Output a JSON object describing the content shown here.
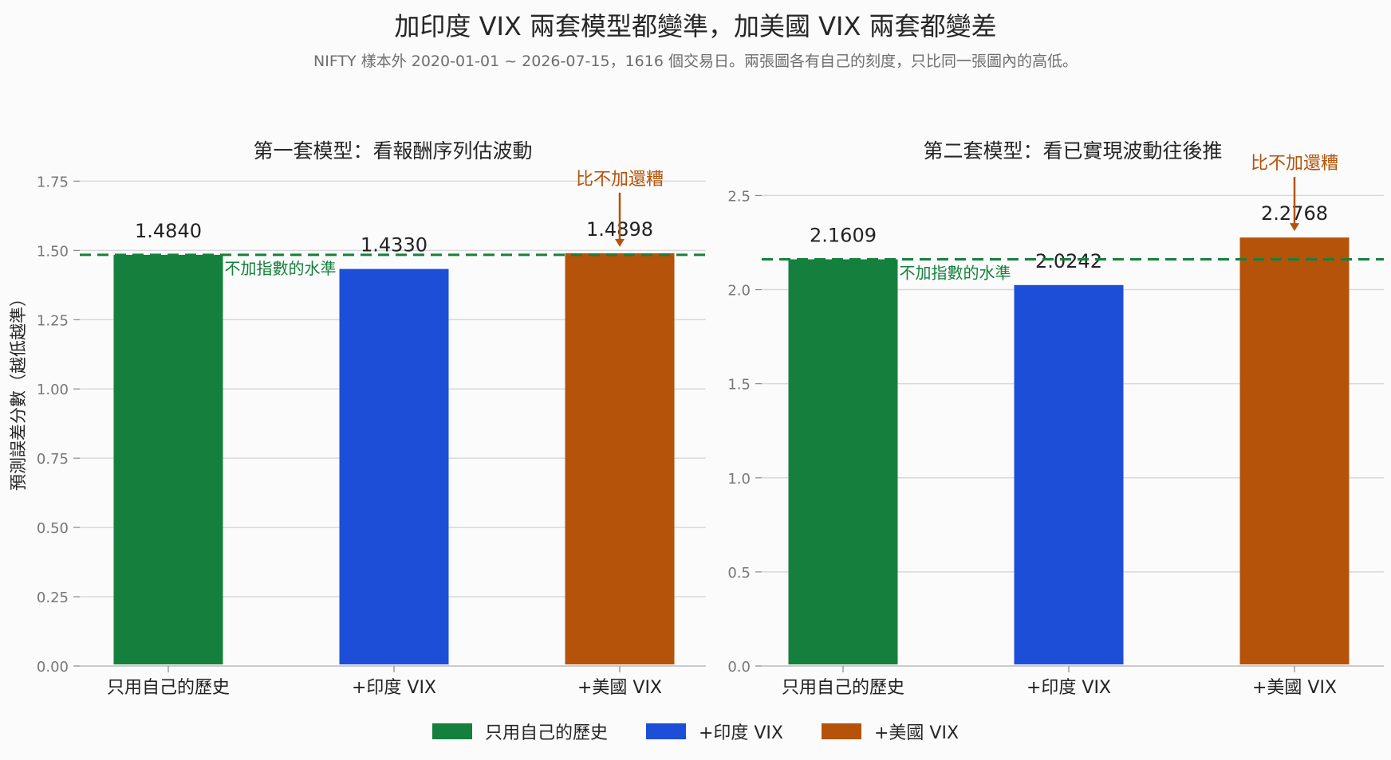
{
  "title": "加印度 VIX 兩套模型都變準，加美國 VIX 兩套都變差",
  "subtitle": "NIFTY 樣本外 2020-01-01 ~ 2026-07-15，1616 個交易日。兩張圖各有自己的刻度，只比同一張圖內的高低。",
  "colors": {
    "own": "#15803d",
    "india": "#1d4ed8",
    "us": "#b45309",
    "grid": "#d9d9d9",
    "baseline": "#15803d"
  },
  "legend": [
    "只用自己的歷史",
    "+印度 VIX",
    "+美國 VIX"
  ],
  "chart_data": [
    {
      "type": "bar",
      "title": "第一套模型：看報酬序列估波動",
      "ylabel": "預測誤差分數（越低越準）",
      "categories": [
        "只用自己的歷史",
        "+印度 VIX",
        "+美國 VIX"
      ],
      "values": [
        1.484,
        1.433,
        1.4898
      ],
      "value_labels": [
        "1.4840",
        "1.4330",
        "1.4898"
      ],
      "ylim": [
        0,
        1.8
      ],
      "yticks": [
        "0.00",
        "0.25",
        "0.50",
        "0.75",
        "1.00",
        "1.25",
        "1.50",
        "1.75"
      ],
      "ytick_values": [
        0,
        0.25,
        0.5,
        0.75,
        1.0,
        1.25,
        1.5,
        1.75
      ],
      "baseline": 1.484,
      "baseline_label": "不加指數的水準",
      "annotation": {
        "text": "比不加還糟",
        "target": "+美國 VIX"
      },
      "grid": true
    },
    {
      "type": "bar",
      "title": "第二套模型：看已實現波動往後推",
      "categories": [
        "只用自己的歷史",
        "+印度 VIX",
        "+美國 VIX"
      ],
      "values": [
        2.1609,
        2.0242,
        2.2768
      ],
      "value_labels": [
        "2.1609",
        "2.0242",
        "2.2768"
      ],
      "ylim": [
        0,
        2.65
      ],
      "yticks": [
        "0.0",
        "0.5",
        "1.0",
        "1.5",
        "2.0",
        "2.5"
      ],
      "ytick_values": [
        0,
        0.5,
        1.0,
        1.5,
        2.0,
        2.5
      ],
      "baseline": 2.1609,
      "baseline_label": "不加指數的水準",
      "annotation": {
        "text": "比不加還糟",
        "target": "+美國 VIX"
      },
      "grid": true
    }
  ]
}
